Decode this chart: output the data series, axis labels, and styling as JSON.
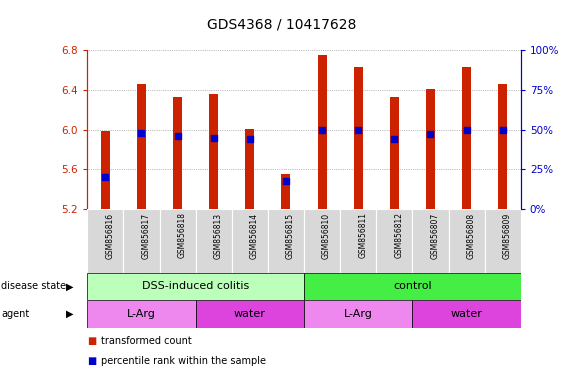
{
  "title": "GDS4368 / 10417628",
  "samples": [
    "GSM856816",
    "GSM856817",
    "GSM856818",
    "GSM856813",
    "GSM856814",
    "GSM856815",
    "GSM856810",
    "GSM856811",
    "GSM856812",
    "GSM856807",
    "GSM856808",
    "GSM856809"
  ],
  "transformed_count": [
    5.99,
    6.46,
    6.33,
    6.36,
    6.01,
    5.55,
    6.75,
    6.63,
    6.33,
    6.41,
    6.63,
    6.46
  ],
  "percentile_rank": [
    20,
    48,
    46,
    45,
    44,
    18,
    50,
    50,
    44,
    47,
    50,
    50
  ],
  "ymin": 5.2,
  "ymax": 6.8,
  "yticks": [
    5.2,
    5.6,
    6.0,
    6.4,
    6.8
  ],
  "bar_color": "#cc2200",
  "dot_color": "#0000cc",
  "disease_state_groups": [
    {
      "label": "DSS-induced colitis",
      "start": 0,
      "end": 6,
      "color": "#bbffbb"
    },
    {
      "label": "control",
      "start": 6,
      "end": 12,
      "color": "#44ee44"
    }
  ],
  "agent_groups": [
    {
      "label": "L-Arg",
      "start": 0,
      "end": 3,
      "color": "#ee88ee"
    },
    {
      "label": "water",
      "start": 3,
      "end": 6,
      "color": "#dd44dd"
    },
    {
      "label": "L-Arg",
      "start": 6,
      "end": 9,
      "color": "#ee88ee"
    },
    {
      "label": "water",
      "start": 9,
      "end": 12,
      "color": "#dd44dd"
    }
  ],
  "legend_items": [
    {
      "label": "transformed count",
      "color": "#cc2200"
    },
    {
      "label": "percentile rank within the sample",
      "color": "#0000cc"
    }
  ],
  "pct_ticks": [
    0,
    25,
    50,
    75,
    100
  ],
  "pct_tick_labels": [
    "0%",
    "25%",
    "50%",
    "75%",
    "100%"
  ]
}
